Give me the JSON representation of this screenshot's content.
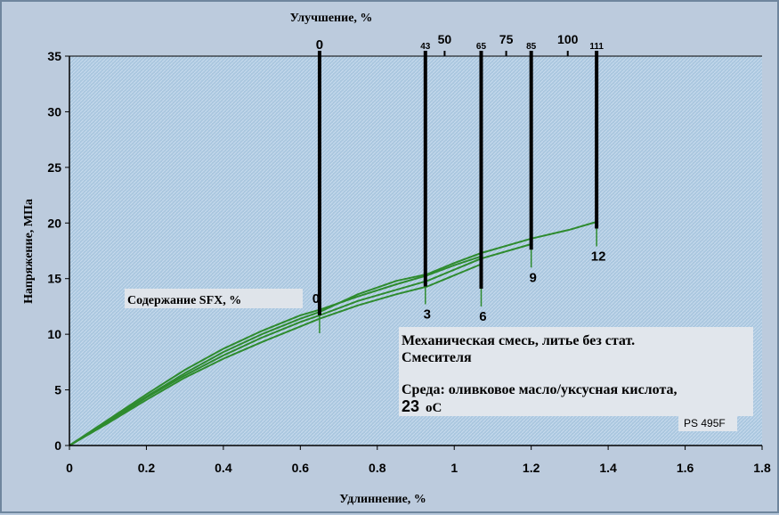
{
  "chart_data": {
    "type": "line",
    "xlabel": "Удлиннение, %",
    "ylabel": "Напряжение, МПа",
    "top_axis_label": "Улучшение, %",
    "xlim": [
      0,
      1.8
    ],
    "ylim": [
      0,
      35
    ],
    "x_ticks": [
      "0",
      "0.2",
      "0.4",
      "0.6",
      "0.8",
      "1",
      "1.2",
      "1.4",
      "1.6",
      "1.8"
    ],
    "y_ticks": [
      "0",
      "5",
      "10",
      "15",
      "20",
      "25",
      "30",
      "35"
    ],
    "top_ticks": [
      {
        "label": "50",
        "x": 0.975
      },
      {
        "label": "75",
        "x": 1.135
      },
      {
        "label": "100",
        "x": 1.295
      }
    ],
    "series": [
      {
        "x": [
          0,
          0.1,
          0.2,
          0.3,
          0.4,
          0.5,
          0.6,
          0.65,
          0.75,
          0.85,
          0.93,
          1.0,
          1.07
        ],
        "y": [
          0,
          2.3,
          4.6,
          6.8,
          8.7,
          10.3,
          11.7,
          12.2,
          13.4,
          14.5,
          15.3,
          16.2,
          17.0
        ]
      },
      {
        "x": [
          0,
          0.1,
          0.2,
          0.3,
          0.4,
          0.5,
          0.6,
          0.65,
          0.75,
          0.85,
          0.93,
          1.0,
          1.07,
          1.2
        ],
        "y": [
          0,
          2.1,
          4.3,
          6.3,
          8.1,
          9.7,
          11.1,
          11.7,
          13.0,
          14.0,
          14.8,
          15.8,
          16.8,
          18.1
        ]
      },
      {
        "x": [
          0,
          0.1,
          0.2,
          0.3,
          0.4,
          0.5,
          0.6,
          0.65,
          0.75,
          0.85,
          0.93,
          1.0,
          1.07
        ],
        "y": [
          0,
          2.0,
          4.1,
          6.1,
          7.8,
          9.3,
          10.7,
          11.4,
          12.6,
          13.6,
          14.3,
          15.3,
          16.3
        ]
      },
      {
        "x": [
          0,
          0.1,
          0.2,
          0.3,
          0.4,
          0.5,
          0.6,
          0.65,
          0.75,
          0.85,
          0.93,
          1.0,
          1.07,
          1.2,
          1.3,
          1.37
        ],
        "y": [
          0,
          2.2,
          4.4,
          6.5,
          8.4,
          10.0,
          11.4,
          12.0,
          13.6,
          14.8,
          15.4,
          16.4,
          17.3,
          18.6,
          19.4,
          20.1
        ]
      }
    ],
    "markers": [
      {
        "sfx": "0",
        "improvement": "0",
        "x": 0.65,
        "y_bottom": 11.7
      },
      {
        "sfx": "3",
        "improvement": "43",
        "x": 0.925,
        "y_bottom": 14.3
      },
      {
        "sfx": "6",
        "improvement": "65",
        "x": 1.07,
        "y_bottom": 14.1
      },
      {
        "sfx": "9",
        "improvement": "85",
        "x": 1.2,
        "y_bottom": 17.6
      },
      {
        "sfx": "12",
        "improvement": "111",
        "x": 1.37,
        "y_bottom": 19.5
      }
    ],
    "grid": false,
    "legend": "none"
  },
  "annotations": {
    "sfx_label": "Содержание SFX, %",
    "info_line1": "Механическая смесь, литье без стат.",
    "info_line2": "Смесителя",
    "info_line3": "Среда: оливковое масло/уксусная кислота,",
    "info_temp": "23",
    "info_unit": "оС",
    "sample": "PS 495F"
  },
  "colors": {
    "background": "#bccbdd",
    "plot_area": "#a9c5de",
    "curve": "#2e8b2e",
    "marker_line": "#000000"
  }
}
